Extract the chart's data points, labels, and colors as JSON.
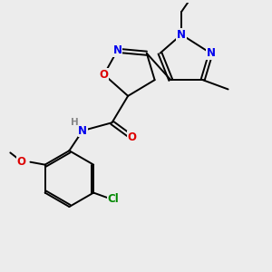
{
  "background_color": "#ececec",
  "bond_color": "#000000",
  "atom_colors": {
    "N": "#0000ee",
    "O": "#dd0000",
    "Cl": "#008800",
    "H": "#888888",
    "C": "#000000"
  },
  "figsize": [
    3.0,
    3.0
  ],
  "dpi": 100
}
